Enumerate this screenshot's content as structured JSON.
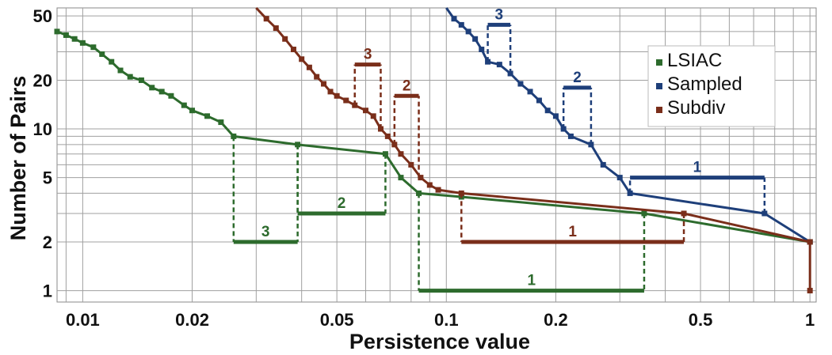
{
  "chart_data": {
    "type": "line",
    "xscale": "log",
    "yscale": "log",
    "xlim": [
      0.0085,
      1.04
    ],
    "ylim": [
      0.85,
      56
    ],
    "xlabel": "Persistence value",
    "ylabel": "Number of Pairs",
    "x_ticks": [
      {
        "value": 0.01,
        "label": "0.01"
      },
      {
        "value": 0.02,
        "label": "0.02"
      },
      {
        "value": 0.05,
        "label": "0.05"
      },
      {
        "value": 0.1,
        "label": "0.1"
      },
      {
        "value": 0.2,
        "label": "0.2"
      },
      {
        "value": 0.5,
        "label": "0.5"
      },
      {
        "value": 1,
        "label": "1"
      }
    ],
    "y_ticks": [
      {
        "value": 1,
        "label": "1"
      },
      {
        "value": 2,
        "label": "2"
      },
      {
        "value": 5,
        "label": "5"
      },
      {
        "value": 10,
        "label": "10"
      },
      {
        "value": 20,
        "label": "20"
      },
      {
        "value": 50,
        "label": "50"
      }
    ],
    "grid": true,
    "legend": "top-right",
    "series": [
      {
        "name": "LSIAC",
        "color": "#2d6b2d",
        "x": [
          0.0085,
          0.009,
          0.0095,
          0.01,
          0.0107,
          0.0113,
          0.012,
          0.0127,
          0.0135,
          0.0145,
          0.0155,
          0.0165,
          0.0175,
          0.019,
          0.02,
          0.022,
          0.024,
          0.026,
          0.039,
          0.068,
          0.075,
          0.084,
          0.11,
          0.35,
          1.0
        ],
        "y": [
          40,
          38,
          36,
          34,
          32,
          29,
          26,
          23,
          21,
          20,
          18,
          17,
          16,
          14,
          13,
          12,
          11,
          9,
          8,
          7,
          5,
          4,
          3.8,
          3,
          2
        ]
      },
      {
        "name": "Sampled",
        "color": "#1e3f7a",
        "x": [
          0.1,
          0.105,
          0.11,
          0.115,
          0.12,
          0.125,
          0.13,
          0.14,
          0.15,
          0.16,
          0.17,
          0.18,
          0.19,
          0.2,
          0.21,
          0.22,
          0.25,
          0.27,
          0.3,
          0.32,
          0.75,
          1.0
        ],
        "y": [
          58,
          48,
          44,
          40,
          36,
          31,
          26,
          25,
          22,
          19,
          17,
          15,
          13,
          12,
          10,
          9,
          8,
          6,
          5,
          4,
          3,
          2
        ]
      },
      {
        "name": "Subdiv",
        "color": "#7a2e1a",
        "x": [
          0.03,
          0.032,
          0.034,
          0.036,
          0.038,
          0.04,
          0.042,
          0.044,
          0.046,
          0.048,
          0.05,
          0.053,
          0.056,
          0.06,
          0.063,
          0.066,
          0.069,
          0.072,
          0.075,
          0.08,
          0.085,
          0.09,
          0.095,
          0.11,
          0.45,
          1.0,
          1.0
        ],
        "y": [
          58,
          48,
          42,
          36,
          31,
          27,
          24,
          21,
          19,
          17,
          16,
          15,
          14,
          13,
          12,
          10,
          9,
          8,
          7,
          6,
          5,
          4.5,
          4.2,
          4,
          3,
          2,
          1
        ]
      }
    ],
    "persistence_bars": [
      {
        "series": "LSIAC",
        "label": "1",
        "x0": 0.084,
        "x1": 0.35,
        "y": 1
      },
      {
        "series": "LSIAC",
        "label": "2",
        "x0": 0.039,
        "x1": 0.068,
        "y": 3
      },
      {
        "series": "LSIAC",
        "label": "3",
        "x0": 0.026,
        "x1": 0.039,
        "y": 2
      },
      {
        "series": "Sampled",
        "label": "1",
        "x0": 0.32,
        "x1": 0.75,
        "y": 5
      },
      {
        "series": "Sampled",
        "label": "2",
        "x0": 0.21,
        "x1": 0.25,
        "y": 18
      },
      {
        "series": "Sampled",
        "label": "3",
        "x0": 0.13,
        "x1": 0.15,
        "y": 44
      },
      {
        "series": "Subdiv",
        "label": "1",
        "x0": 0.11,
        "x1": 0.45,
        "y": 2
      },
      {
        "series": "Subdiv",
        "label": "2",
        "x0": 0.072,
        "x1": 0.084,
        "y": 16
      },
      {
        "series": "Subdiv",
        "label": "3",
        "x0": 0.056,
        "x1": 0.066,
        "y": 25
      }
    ]
  }
}
